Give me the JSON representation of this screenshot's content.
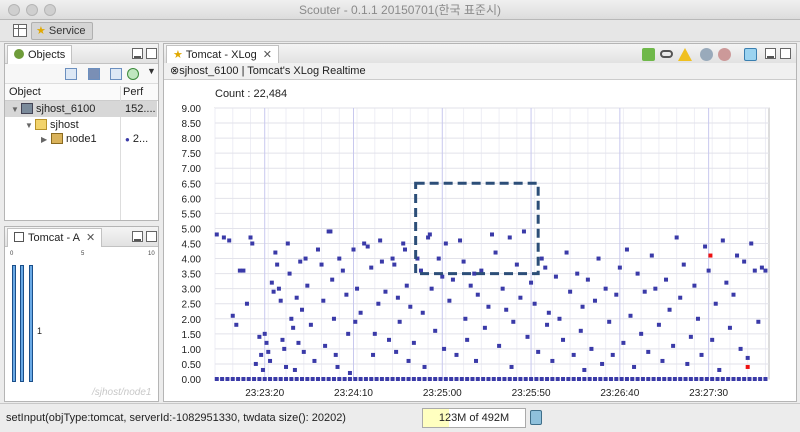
{
  "window": {
    "title": "Scouter - 0.1.1 20150701(한국 표준시)"
  },
  "toolbar": {
    "perspective_label": "Service"
  },
  "objects_panel": {
    "tab_label": "Objects",
    "columns": {
      "object": "Object",
      "perf": "Perf"
    },
    "rows": [
      {
        "label": "sjhost_6100",
        "perf": "152...."
      },
      {
        "label": "sjhost",
        "perf": ""
      },
      {
        "label": "node1",
        "perf": "2..."
      }
    ]
  },
  "stat_panel": {
    "tab_label": "Tomcat - A",
    "axis_ticks": [
      "0",
      "5",
      "10"
    ],
    "bar_label": "1",
    "watermark": "/sjhost/node1",
    "bars": [
      {
        "value": 1
      },
      {
        "value": 1
      },
      {
        "value": 1
      }
    ]
  },
  "xlog_panel": {
    "tab_label": "Tomcat - XLog",
    "subtitle": "⊗sjhost_6100 | Tomcat's XLog Realtime"
  },
  "chart_data": {
    "type": "scatter",
    "count_label": "Count : 22,484",
    "y_ticks": [
      "9.00",
      "8.50",
      "8.00",
      "7.50",
      "7.00",
      "6.50",
      "6.00",
      "5.50",
      "5.00",
      "4.50",
      "4.00",
      "3.50",
      "3.00",
      "2.50",
      "2.00",
      "1.50",
      "1.00",
      "0.50",
      "0.00"
    ],
    "x_ticks": [
      {
        "label": "23:23:20",
        "t": 80
      },
      {
        "label": "23:24:10",
        "t": 130
      },
      {
        "label": "23:25:00",
        "t": 180
      },
      {
        "label": "23:25:50",
        "t": 230
      },
      {
        "label": "23:26:40",
        "t": 280
      },
      {
        "label": "23:27:30",
        "t": 330
      }
    ],
    "ylim": [
      0,
      9
    ],
    "xlim": [
      52,
      364
    ],
    "grid": true,
    "colors": {
      "point": "#3a3aa8",
      "error": "#ee1111",
      "selection": "#2c4e78"
    },
    "selection_box": {
      "x0": 165,
      "x1": 234,
      "y0": 3.5,
      "y1": 6.5
    },
    "points_normal": [
      [
        53,
        4.8
      ],
      [
        57,
        4.7
      ],
      [
        60,
        4.6
      ],
      [
        62,
        2.1
      ],
      [
        64,
        1.8
      ],
      [
        66,
        3.6
      ],
      [
        68,
        3.6
      ],
      [
        70,
        2.5
      ],
      [
        72,
        4.7
      ],
      [
        73,
        4.5
      ],
      [
        75,
        0.5
      ],
      [
        77,
        1.4
      ],
      [
        78,
        0.8
      ],
      [
        79,
        0.3
      ],
      [
        80,
        1.5
      ],
      [
        81,
        1.2
      ],
      [
        82,
        0.9
      ],
      [
        83,
        0.6
      ],
      [
        84,
        3.2
      ],
      [
        85,
        2.9
      ],
      [
        86,
        4.2
      ],
      [
        87,
        3.8
      ],
      [
        88,
        3.0
      ],
      [
        89,
        2.6
      ],
      [
        90,
        1.3
      ],
      [
        91,
        1.0
      ],
      [
        92,
        0.4
      ],
      [
        93,
        4.5
      ],
      [
        94,
        3.5
      ],
      [
        95,
        2.0
      ],
      [
        96,
        1.7
      ],
      [
        97,
        0.3
      ],
      [
        98,
        2.7
      ],
      [
        99,
        1.2
      ],
      [
        100,
        3.9
      ],
      [
        101,
        2.3
      ],
      [
        102,
        0.9
      ],
      [
        103,
        4.0
      ],
      [
        104,
        3.1
      ],
      [
        106,
        1.8
      ],
      [
        108,
        0.6
      ],
      [
        110,
        4.3
      ],
      [
        112,
        3.8
      ],
      [
        113,
        2.6
      ],
      [
        114,
        1.1
      ],
      [
        116,
        4.9
      ],
      [
        117,
        4.9
      ],
      [
        118,
        3.3
      ],
      [
        119,
        2.0
      ],
      [
        120,
        0.8
      ],
      [
        121,
        0.4
      ],
      [
        122,
        4.0
      ],
      [
        124,
        3.6
      ],
      [
        126,
        2.8
      ],
      [
        127,
        1.5
      ],
      [
        128,
        0.2
      ],
      [
        130,
        4.3
      ],
      [
        131,
        1.9
      ],
      [
        132,
        3.0
      ],
      [
        134,
        2.2
      ],
      [
        136,
        4.5
      ],
      [
        138,
        4.4
      ],
      [
        140,
        3.7
      ],
      [
        141,
        0.8
      ],
      [
        142,
        1.5
      ],
      [
        144,
        2.5
      ],
      [
        145,
        4.6
      ],
      [
        146,
        3.9
      ],
      [
        148,
        2.9
      ],
      [
        150,
        1.3
      ],
      [
        152,
        4.0
      ],
      [
        153,
        3.8
      ],
      [
        154,
        0.9
      ],
      [
        155,
        2.7
      ],
      [
        156,
        1.9
      ],
      [
        158,
        4.5
      ],
      [
        159,
        4.3
      ],
      [
        160,
        3.1
      ],
      [
        161,
        0.6
      ],
      [
        162,
        2.4
      ],
      [
        164,
        1.2
      ],
      [
        166,
        4.0
      ],
      [
        168,
        3.6
      ],
      [
        169,
        2.2
      ],
      [
        170,
        0.4
      ],
      [
        172,
        4.7
      ],
      [
        173,
        4.8
      ],
      [
        174,
        3.0
      ],
      [
        176,
        1.6
      ],
      [
        178,
        4.0
      ],
      [
        180,
        3.4
      ],
      [
        181,
        1.0
      ],
      [
        182,
        4.5
      ],
      [
        184,
        2.6
      ],
      [
        186,
        3.3
      ],
      [
        188,
        0.8
      ],
      [
        190,
        4.6
      ],
      [
        192,
        3.9
      ],
      [
        193,
        2.0
      ],
      [
        194,
        1.3
      ],
      [
        196,
        3.1
      ],
      [
        198,
        3.5
      ],
      [
        199,
        0.6
      ],
      [
        200,
        2.8
      ],
      [
        202,
        3.6
      ],
      [
        204,
        1.7
      ],
      [
        206,
        2.4
      ],
      [
        208,
        4.8
      ],
      [
        210,
        4.2
      ],
      [
        212,
        1.1
      ],
      [
        214,
        3.0
      ],
      [
        216,
        2.3
      ],
      [
        218,
        4.7
      ],
      [
        219,
        0.4
      ],
      [
        220,
        1.9
      ],
      [
        222,
        3.8
      ],
      [
        224,
        2.7
      ],
      [
        226,
        4.9
      ],
      [
        228,
        1.4
      ],
      [
        230,
        3.2
      ],
      [
        232,
        2.5
      ],
      [
        234,
        0.9
      ],
      [
        236,
        4.0
      ],
      [
        238,
        3.7
      ],
      [
        239,
        1.8
      ],
      [
        240,
        2.2
      ],
      [
        242,
        0.6
      ],
      [
        244,
        3.4
      ],
      [
        246,
        2.0
      ],
      [
        248,
        1.3
      ],
      [
        250,
        4.2
      ],
      [
        252,
        2.9
      ],
      [
        254,
        0.8
      ],
      [
        256,
        3.5
      ],
      [
        258,
        1.6
      ],
      [
        259,
        2.4
      ],
      [
        260,
        0.3
      ],
      [
        262,
        3.3
      ],
      [
        264,
        1.0
      ],
      [
        266,
        2.6
      ],
      [
        268,
        4.0
      ],
      [
        270,
        0.5
      ],
      [
        272,
        3.0
      ],
      [
        274,
        1.9
      ],
      [
        276,
        0.8
      ],
      [
        278,
        2.8
      ],
      [
        280,
        3.7
      ],
      [
        282,
        1.2
      ],
      [
        284,
        4.3
      ],
      [
        286,
        2.1
      ],
      [
        288,
        0.4
      ],
      [
        290,
        3.5
      ],
      [
        292,
        1.5
      ],
      [
        294,
        2.9
      ],
      [
        296,
        0.9
      ],
      [
        298,
        4.1
      ],
      [
        300,
        3.0
      ],
      [
        302,
        1.8
      ],
      [
        304,
        0.6
      ],
      [
        306,
        3.3
      ],
      [
        308,
        2.3
      ],
      [
        310,
        1.1
      ],
      [
        312,
        4.7
      ],
      [
        314,
        2.7
      ],
      [
        316,
        3.8
      ],
      [
        318,
        0.5
      ],
      [
        320,
        1.4
      ],
      [
        322,
        3.1
      ],
      [
        324,
        2.0
      ],
      [
        326,
        0.8
      ],
      [
        328,
        4.4
      ],
      [
        330,
        3.6
      ],
      [
        332,
        1.3
      ],
      [
        334,
        2.5
      ],
      [
        336,
        0.3
      ],
      [
        338,
        4.6
      ],
      [
        340,
        3.2
      ],
      [
        342,
        1.7
      ],
      [
        344,
        2.8
      ],
      [
        346,
        4.1
      ],
      [
        348,
        1.0
      ],
      [
        350,
        3.9
      ],
      [
        352,
        0.7
      ],
      [
        354,
        4.5
      ],
      [
        356,
        3.6
      ],
      [
        358,
        1.9
      ],
      [
        360,
        3.7
      ],
      [
        362,
        3.6
      ]
    ],
    "points_error": [
      [
        331,
        4.1
      ],
      [
        352,
        0.4
      ]
    ]
  }
}
